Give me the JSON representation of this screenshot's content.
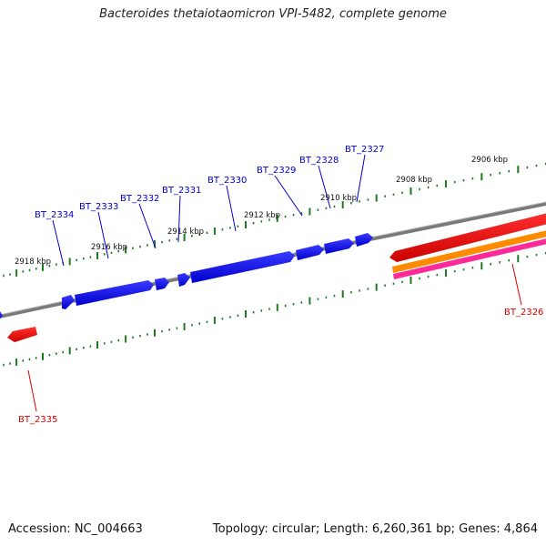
{
  "title": "Bacteroides thetaiotaomicron VPI-5482, complete genome",
  "footer": {
    "accession": "Accession: NC_004663",
    "topology": "Topology: circular; Length: 6,260,361 bp; Genes: 4,864"
  },
  "colors": {
    "backbone": "#888888",
    "forward_gene": "#0000ee",
    "reverse_gene": "#ee0000",
    "reverse_label": "#dd0000",
    "forward_label": "#0000cc",
    "tick": "#1e7a1e",
    "orange_feature": "#ff8c00",
    "magenta_feature": "#ff1493"
  },
  "tick_labels": [
    "2906 kbp",
    "2908 kbp",
    "2910 kbp",
    "2912 kbp",
    "2914 kbp",
    "2916 kbp",
    "2918 kbp"
  ],
  "gene_labels": {
    "forward": [
      "BT_2327",
      "BT_2328",
      "BT_2329",
      "BT_2330",
      "BT_2331",
      "BT_2332",
      "BT_2333",
      "BT_2334"
    ],
    "reverse": [
      "BT_2326",
      "BT_2335"
    ]
  }
}
